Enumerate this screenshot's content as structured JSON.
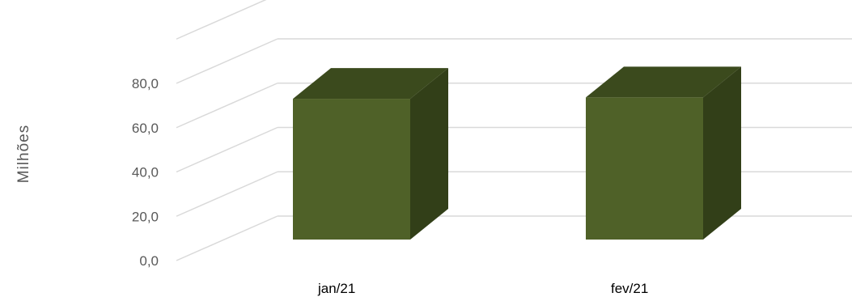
{
  "chart_data": {
    "type": "bar",
    "style": "3d-column",
    "categories": [
      "jan/21",
      "fev/21"
    ],
    "series": [
      {
        "values": [
          73.4,
          74.0
        ]
      }
    ],
    "ylabel": "Milhões",
    "yticks": [
      "0,0",
      "20,0",
      "40,0",
      "60,0",
      "80,0"
    ],
    "ylim": [
      0,
      100
    ],
    "grid": true,
    "colors": {
      "bar_front": "#4f6128",
      "bar_top": "#3b4a1d",
      "bar_side": "#323f18",
      "grid": "#d9d9d9"
    }
  }
}
